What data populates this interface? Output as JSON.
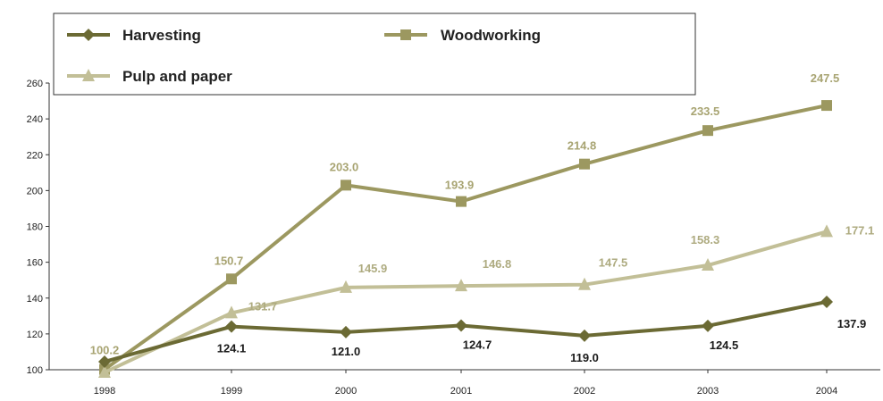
{
  "chart_data": {
    "type": "line",
    "x": [
      "1998",
      "1999",
      "2000",
      "2001",
      "2002",
      "2003",
      "2004"
    ],
    "ylim": [
      100,
      260
    ],
    "yticks": [
      "100",
      "120",
      "140",
      "160",
      "180",
      "200",
      "220",
      "240",
      "260"
    ],
    "grid": false,
    "legend_position": "top",
    "series": [
      {
        "name": "Harvesting",
        "marker": "diamond",
        "color": "#6b6a34",
        "label_color": "#1a1a1a",
        "values": [
          104.5,
          124.1,
          121.0,
          124.7,
          119.0,
          124.5,
          137.9
        ],
        "labels": [
          null,
          "124.1",
          "121.0",
          "124.7",
          "119.0",
          "124.5",
          "137.9"
        ]
      },
      {
        "name": "Woodworking",
        "marker": "square",
        "color": "#9c9860",
        "label_color": "#a8a472",
        "values": [
          100.2,
          150.7,
          203.0,
          193.9,
          214.8,
          233.5,
          247.5
        ],
        "labels": [
          "100.2",
          "150.7",
          "203.0",
          "193.9",
          "214.8",
          "233.5",
          "247.5"
        ]
      },
      {
        "name": "Pulp and paper",
        "marker": "triangle",
        "color": "#c2bf97",
        "label_color": "#aeab80",
        "values": [
          98.5,
          131.7,
          145.9,
          146.8,
          147.5,
          158.3,
          177.1
        ],
        "labels": [
          null,
          "131.7",
          "145.9",
          "146.8",
          "147.5",
          "158.3",
          "177.1"
        ]
      }
    ]
  }
}
